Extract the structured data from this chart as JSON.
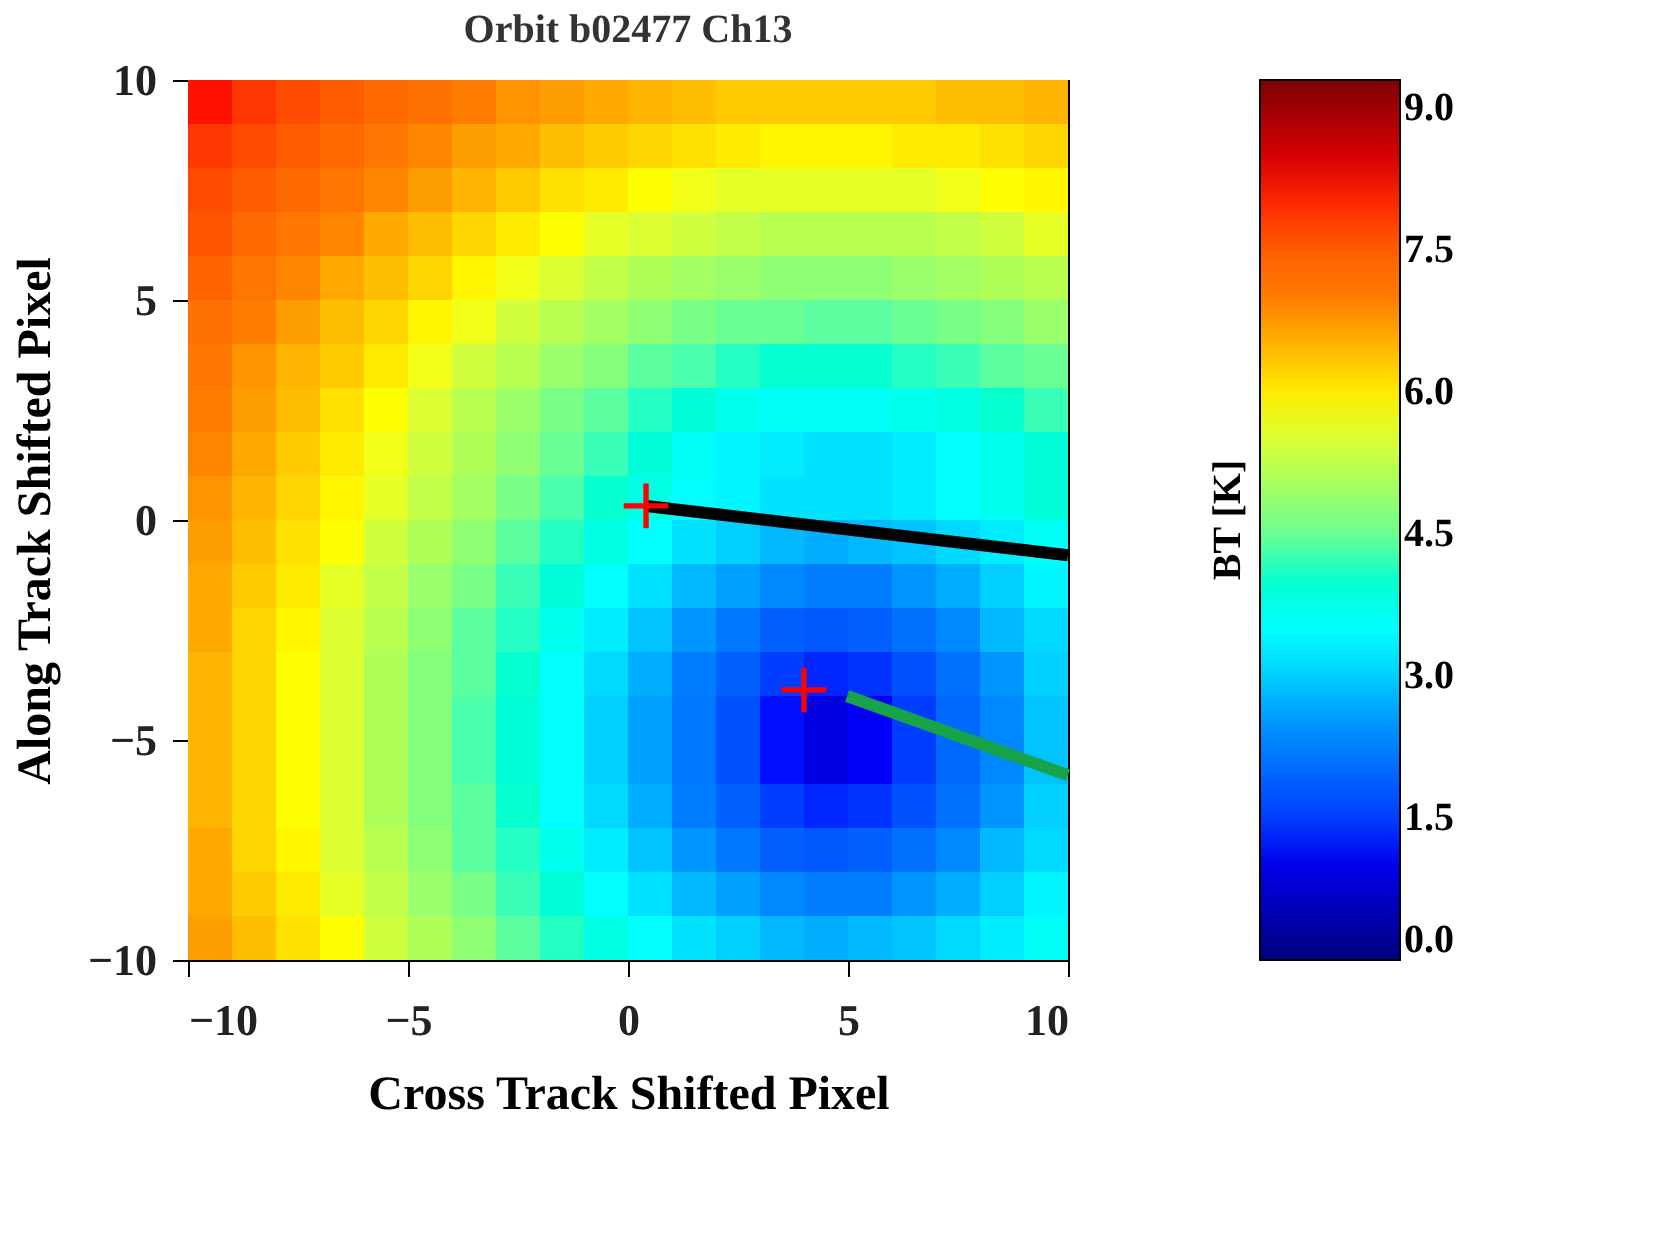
{
  "chart_data": {
    "type": "heatmap",
    "title": "Orbit b02477 Ch13",
    "xlabel": "Cross Track Shifted Pixel",
    "ylabel": "Along Track Shifted Pixel",
    "clabel": "BT [K]",
    "x": [
      -9.5,
      -8.5,
      -7.5,
      -6.5,
      -5.5,
      -4.5,
      -3.5,
      -2.5,
      -1.5,
      -0.5,
      0.5,
      1.5,
      2.5,
      3.5,
      4.5,
      5.5,
      6.5,
      7.5,
      8.5,
      9.5
    ],
    "y": [
      9.5,
      8.5,
      7.5,
      6.5,
      5.5,
      4.5,
      3.5,
      2.5,
      1.5,
      0.5,
      -0.5,
      -1.5,
      -2.5,
      -3.5,
      -4.5,
      -5.5,
      -6.5,
      -7.5,
      -8.5,
      -9.5
    ],
    "xlim": [
      -10,
      10
    ],
    "xticks": [
      -10,
      -5,
      0,
      5,
      10
    ],
    "ylim": [
      -10,
      10
    ],
    "yticks": [
      -10,
      -5,
      0,
      5,
      10
    ],
    "clim": [
      0,
      9.3
    ],
    "cticks": [
      {
        "value": 0,
        "label": "0.0"
      },
      1.5,
      {
        "value": 3,
        "label": "3.0"
      },
      4.5,
      {
        "value": 6,
        "label": "6.0"
      },
      7.5,
      {
        "value": 9,
        "label": "9.0"
      }
    ],
    "grid": false,
    "cells": [
      [
        8.1,
        7.9,
        7.7,
        7.5,
        7.3,
        7.2,
        7.0,
        6.8,
        6.7,
        6.6,
        6.5,
        6.4,
        6.3,
        6.3,
        6.3,
        6.3,
        6.3,
        6.4,
        6.4,
        6.5
      ],
      [
        7.9,
        7.7,
        7.5,
        7.3,
        7.1,
        6.9,
        6.7,
        6.6,
        6.4,
        6.3,
        6.2,
        6.1,
        6.0,
        5.9,
        5.9,
        5.9,
        6.0,
        6.0,
        6.1,
        6.2
      ],
      [
        7.7,
        7.5,
        7.3,
        7.1,
        6.9,
        6.7,
        6.5,
        6.3,
        6.1,
        6.0,
        5.8,
        5.7,
        5.6,
        5.6,
        5.6,
        5.6,
        5.6,
        5.7,
        5.8,
        5.9
      ],
      [
        7.6,
        7.3,
        7.1,
        6.9,
        6.6,
        6.4,
        6.2,
        6.0,
        5.8,
        5.6,
        5.5,
        5.4,
        5.3,
        5.2,
        5.2,
        5.2,
        5.2,
        5.3,
        5.4,
        5.6
      ],
      [
        7.4,
        7.1,
        6.9,
        6.6,
        6.4,
        6.2,
        5.9,
        5.7,
        5.5,
        5.3,
        5.1,
        5.0,
        4.9,
        4.8,
        4.8,
        4.8,
        4.9,
        5.0,
        5.1,
        5.2
      ],
      [
        7.2,
        7.0,
        6.7,
        6.4,
        6.2,
        5.9,
        5.7,
        5.4,
        5.2,
        5.0,
        4.8,
        4.6,
        4.5,
        4.5,
        4.4,
        4.4,
        4.5,
        4.6,
        4.7,
        4.9
      ],
      [
        7.1,
        6.8,
        6.5,
        6.3,
        6.0,
        5.7,
        5.4,
        5.2,
        4.9,
        4.7,
        4.4,
        4.3,
        4.1,
        4.0,
        4.0,
        4.0,
        4.1,
        4.2,
        4.4,
        4.5
      ],
      [
        7.0,
        6.7,
        6.4,
        6.1,
        5.8,
        5.5,
        5.2,
        4.9,
        4.6,
        4.4,
        4.1,
        3.9,
        3.7,
        3.6,
        3.6,
        3.6,
        3.7,
        3.8,
        4.0,
        4.2
      ],
      [
        6.9,
        6.6,
        6.3,
        6.0,
        5.7,
        5.4,
        5.1,
        4.8,
        4.5,
        4.2,
        3.9,
        3.6,
        3.4,
        3.3,
        3.2,
        3.2,
        3.3,
        3.5,
        3.7,
        3.9
      ],
      [
        6.8,
        6.5,
        6.2,
        5.9,
        5.6,
        5.3,
        5.0,
        4.6,
        4.3,
        4.0,
        3.8,
        3.5,
        3.4,
        3.2,
        3.2,
        3.2,
        3.3,
        3.5,
        3.7,
        3.9
      ],
      [
        6.7,
        6.4,
        6.1,
        5.8,
        5.4,
        5.1,
        4.8,
        4.4,
        4.1,
        3.8,
        3.5,
        3.2,
        3.0,
        2.8,
        2.7,
        2.8,
        2.9,
        3.1,
        3.3,
        3.6
      ],
      [
        6.6,
        6.3,
        6.0,
        5.6,
        5.3,
        4.9,
        4.6,
        4.2,
        3.9,
        3.5,
        3.2,
        2.8,
        2.6,
        2.4,
        2.3,
        2.3,
        2.5,
        2.7,
        3.0,
        3.4
      ],
      [
        6.6,
        6.2,
        5.9,
        5.5,
        5.2,
        4.8,
        4.4,
        4.1,
        3.7,
        3.3,
        2.9,
        2.5,
        2.2,
        1.9,
        1.8,
        1.9,
        2.1,
        2.4,
        2.8,
        3.1
      ],
      [
        6.5,
        6.2,
        5.8,
        5.5,
        5.1,
        4.7,
        4.4,
        4.0,
        3.5,
        3.1,
        2.7,
        2.3,
        1.9,
        1.5,
        1.3,
        1.4,
        1.7,
        2.1,
        2.5,
        3.0
      ],
      [
        6.5,
        6.2,
        5.8,
        5.5,
        5.1,
        4.7,
        4.3,
        3.9,
        3.5,
        3.0,
        2.6,
        2.2,
        1.7,
        1.2,
        0.9,
        1.1,
        1.5,
        2.0,
        2.4,
        2.9
      ],
      [
        6.5,
        6.2,
        5.8,
        5.5,
        5.1,
        4.7,
        4.3,
        3.9,
        3.5,
        3.0,
        2.6,
        2.2,
        1.7,
        1.2,
        0.9,
        1.1,
        1.5,
        2.0,
        2.4,
        2.9
      ],
      [
        6.5,
        6.2,
        5.8,
        5.5,
        5.1,
        4.7,
        4.4,
        4.0,
        3.5,
        3.1,
        2.7,
        2.3,
        1.9,
        1.5,
        1.3,
        1.4,
        1.7,
        2.1,
        2.5,
        3.0
      ],
      [
        6.6,
        6.2,
        5.9,
        5.5,
        5.2,
        4.8,
        4.4,
        4.1,
        3.7,
        3.3,
        2.9,
        2.5,
        2.2,
        1.9,
        1.8,
        1.9,
        2.1,
        2.4,
        2.8,
        3.1
      ],
      [
        6.6,
        6.3,
        6.0,
        5.6,
        5.3,
        4.9,
        4.6,
        4.2,
        3.9,
        3.5,
        3.2,
        2.8,
        2.6,
        2.4,
        2.3,
        2.3,
        2.5,
        2.7,
        3.0,
        3.4
      ],
      [
        6.7,
        6.4,
        6.1,
        5.8,
        5.4,
        5.1,
        4.8,
        4.4,
        4.1,
        3.8,
        3.5,
        3.2,
        3.0,
        2.8,
        2.7,
        2.8,
        2.9,
        3.1,
        3.3,
        3.6
      ]
    ],
    "series": [
      {
        "type": "line",
        "color": "#000000",
        "x": [
          0.41,
          10
        ],
        "values": [
          0.32,
          -0.8
        ]
      },
      {
        "type": "line",
        "color": "#16a34a",
        "x": [
          4.98,
          10
        ],
        "values": [
          -4.0,
          -5.8
        ]
      },
      {
        "type": "scatter",
        "marker": "cross",
        "color": "#ff0000",
        "x": [
          0.41,
          4.0
        ],
        "values": [
          0.32,
          -3.86
        ]
      }
    ]
  }
}
